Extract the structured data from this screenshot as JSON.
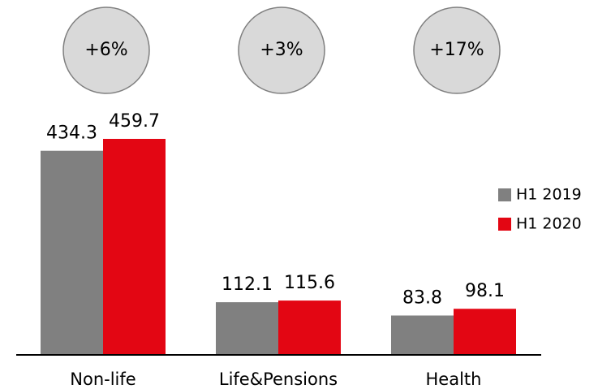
{
  "chart_data": {
    "type": "bar",
    "categories": [
      "Non-life",
      "Life&Pensions",
      "Health"
    ],
    "series": [
      {
        "name": "H1 2019",
        "color": "#808080",
        "values": [
          434.3,
          112.1,
          83.8
        ]
      },
      {
        "name": "H1 2020",
        "color": "#e30613",
        "values": [
          459.7,
          115.6,
          98.1
        ]
      }
    ],
    "annotations": [
      "+6%",
      "+3%",
      "+17%"
    ],
    "legend": "right"
  }
}
